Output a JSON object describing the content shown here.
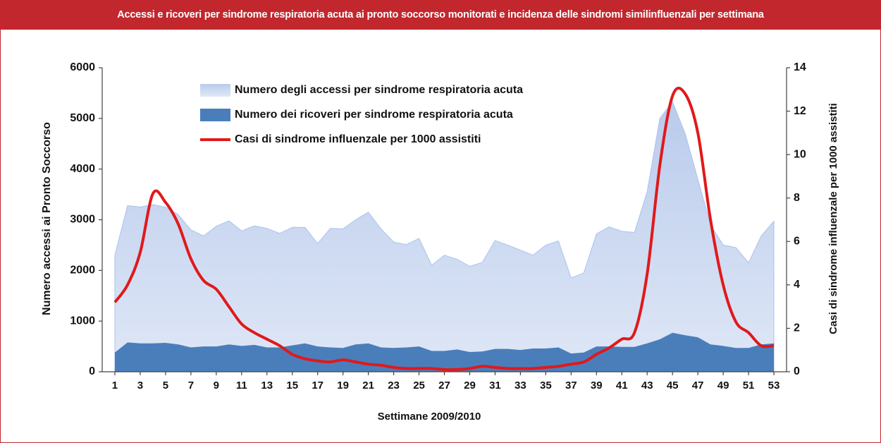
{
  "chart_data": {
    "type": "combo",
    "title": "Accessi e ricoveri per sindrome respiratoria acuta ai pronto soccorso monitorati e incidenza delle sindromi similinfluenzali per settimana",
    "x_label": "Settimane 2009/2010",
    "y_label": "Numero accessi ai Pronto Soccorso",
    "y2_label": "Casi di sindrome influenzale per 1000 assistiti",
    "x": [
      1,
      2,
      3,
      4,
      5,
      6,
      7,
      8,
      9,
      10,
      11,
      12,
      13,
      14,
      15,
      16,
      17,
      18,
      19,
      20,
      21,
      22,
      23,
      24,
      25,
      26,
      27,
      28,
      29,
      30,
      31,
      32,
      33,
      34,
      35,
      36,
      37,
      38,
      39,
      40,
      41,
      42,
      43,
      44,
      45,
      46,
      47,
      48,
      49,
      50,
      51,
      52,
      53
    ],
    "xlim": [
      0,
      54
    ],
    "xticks": [
      1,
      3,
      5,
      7,
      9,
      11,
      13,
      15,
      17,
      19,
      21,
      23,
      25,
      27,
      29,
      31,
      33,
      35,
      37,
      39,
      41,
      43,
      45,
      47,
      49,
      51,
      53
    ],
    "ylim": [
      0,
      6000
    ],
    "yticks": [
      0,
      1000,
      2000,
      3000,
      4000,
      5000,
      6000
    ],
    "y2lim": [
      0,
      14
    ],
    "y2ticks": [
      0,
      2,
      4,
      6,
      8,
      10,
      12,
      14
    ],
    "grid": false,
    "legend_position": "upper-center",
    "series": [
      {
        "name": "Numero degli accessi per sindrome respiratoria acuta",
        "type": "area",
        "color": "#b9cbec",
        "values": [
          2300,
          3280,
          3250,
          3300,
          3250,
          3100,
          2800,
          2680,
          2870,
          2980,
          2780,
          2880,
          2830,
          2730,
          2850,
          2850,
          2530,
          2830,
          2820,
          3000,
          3150,
          2820,
          2560,
          2510,
          2630,
          2100,
          2300,
          2220,
          2080,
          2160,
          2590,
          2500,
          2400,
          2300,
          2500,
          2580,
          1850,
          1950,
          2720,
          2860,
          2770,
          2750,
          3550,
          5000,
          5330,
          4700,
          3800,
          2900,
          2500,
          2450,
          2150,
          2680,
          2970
        ]
      },
      {
        "name": "Numero dei ricoveri per sindrome respiratoria acuta",
        "type": "area",
        "color": "#4a7ebb",
        "values": [
          380,
          580,
          560,
          560,
          570,
          540,
          480,
          500,
          500,
          540,
          510,
          530,
          480,
          480,
          520,
          560,
          500,
          480,
          470,
          540,
          560,
          480,
          470,
          480,
          500,
          410,
          410,
          440,
          390,
          400,
          450,
          450,
          430,
          460,
          460,
          480,
          360,
          380,
          500,
          500,
          490,
          490,
          560,
          640,
          770,
          720,
          680,
          540,
          510,
          470,
          470,
          540,
          560
        ]
      },
      {
        "name": "Casi di sindrome influenzale per 1000 assistiti",
        "type": "line",
        "color": "#e0191b",
        "axis": "y2",
        "values": [
          3.2,
          4.0,
          5.5,
          8.2,
          7.8,
          6.8,
          5.2,
          4.2,
          3.8,
          3.0,
          2.2,
          1.8,
          1.5,
          1.2,
          0.8,
          0.6,
          0.5,
          0.45,
          0.55,
          0.45,
          0.35,
          0.3,
          0.2,
          0.15,
          0.15,
          0.15,
          0.1,
          0.1,
          0.15,
          0.25,
          0.2,
          0.15,
          0.15,
          0.15,
          0.2,
          0.25,
          0.35,
          0.45,
          0.8,
          1.1,
          1.5,
          1.8,
          4.5,
          9.5,
          12.7,
          12.8,
          11,
          7,
          4,
          2.3,
          1.8,
          1.2,
          1.2
        ]
      }
    ]
  }
}
